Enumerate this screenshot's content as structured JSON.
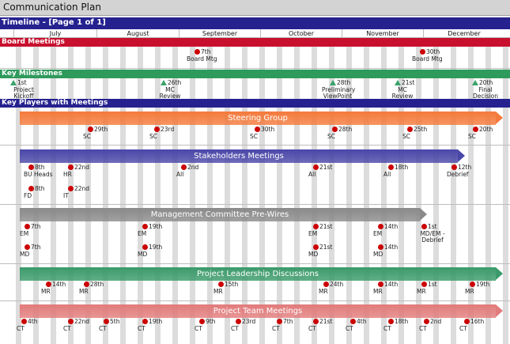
{
  "window_title": "Communication Plan",
  "timeline_label": "Timeline - [Page 1 of 1]",
  "months": [
    "July",
    "August",
    "September",
    "October",
    "November",
    "December"
  ],
  "sections": {
    "board": "Board Meetings",
    "milestones": "Key Milestones",
    "players": "Key Players with Meetings"
  },
  "board_meetings": [
    {
      "date": "7th",
      "label": "Board Mtg"
    },
    {
      "date": "30th",
      "label": "Board Mtg"
    }
  ],
  "milestones": [
    {
      "date": "1st",
      "label": "Project Kickoff"
    },
    {
      "date": "26th",
      "label": "MC Review"
    },
    {
      "date": "28th",
      "label": "Preliminary ViewPoint"
    },
    {
      "date": "21st",
      "label": "MC Review"
    },
    {
      "date": "20th",
      "label": "Final Decision"
    }
  ],
  "groups": [
    {
      "name": "Steering Group",
      "color": "#f47a3c",
      "rows": [
        [
          {
            "date": "29th",
            "label": "SC"
          },
          {
            "date": "23rd",
            "label": "SC"
          },
          {
            "date": "30th",
            "label": "SC"
          },
          {
            "date": "28th",
            "label": "SC"
          },
          {
            "date": "25th",
            "label": "SC"
          },
          {
            "date": "20th",
            "label": "SC"
          }
        ]
      ]
    },
    {
      "name": "Stakeholders Meetings",
      "color": "#4a47a8",
      "rows": [
        [
          {
            "date": "8th",
            "label": "BU Heads"
          },
          {
            "date": "22nd",
            "label": "HR"
          },
          {
            "date": "2nd",
            "label": "All"
          },
          {
            "date": "21st",
            "label": "All"
          },
          {
            "date": "18th",
            "label": "All"
          },
          {
            "date": "12th",
            "label": "Debrief"
          }
        ],
        [
          {
            "date": "8th",
            "label": "FD"
          },
          {
            "date": "22nd",
            "label": "IT"
          }
        ]
      ]
    },
    {
      "name": "Management Committee Pre-Wires",
      "color": "#8a8a8a",
      "rows": [
        [
          {
            "date": "7th",
            "label": "EM"
          },
          {
            "date": "19th",
            "label": "EM"
          },
          {
            "date": "21st",
            "label": "EM"
          },
          {
            "date": "14th",
            "label": "EM"
          },
          {
            "date": "1st",
            "label": "MD/EM - Debrief"
          }
        ],
        [
          {
            "date": "7th",
            "label": "MD"
          },
          {
            "date": "19th",
            "label": "MD"
          },
          {
            "date": "21st",
            "label": "MD"
          },
          {
            "date": "14th",
            "label": "MD"
          }
        ]
      ]
    },
    {
      "name": "Project Leadership Discussions",
      "color": "#3b9a6a",
      "rows": [
        [
          {
            "date": "14th",
            "label": "MR"
          },
          {
            "date": "28th",
            "label": "MR"
          },
          {
            "date": "15th",
            "label": "MR"
          },
          {
            "date": "24th",
            "label": "MR"
          },
          {
            "date": "14th",
            "label": "MR"
          },
          {
            "date": "1st",
            "label": "MR"
          },
          {
            "date": "19th",
            "label": "MR"
          }
        ]
      ]
    },
    {
      "name": "Project Team Meetings",
      "color": "#e27b7b",
      "rows": [
        [
          {
            "date": "4th",
            "label": "CT"
          },
          {
            "date": "22nd",
            "label": "CT"
          },
          {
            "date": "5th",
            "label": "CT"
          },
          {
            "date": "19th",
            "label": "CT"
          },
          {
            "date": "9th",
            "label": "CT"
          },
          {
            "date": "23rd",
            "label": "CT"
          },
          {
            "date": "7th",
            "label": "CT"
          },
          {
            "date": "21st",
            "label": "CT"
          },
          {
            "date": "4th",
            "label": "CT"
          },
          {
            "date": "18th",
            "label": "CT"
          },
          {
            "date": "2nd",
            "label": "CT"
          },
          {
            "date": "16th",
            "label": "CT"
          }
        ]
      ]
    }
  ]
}
